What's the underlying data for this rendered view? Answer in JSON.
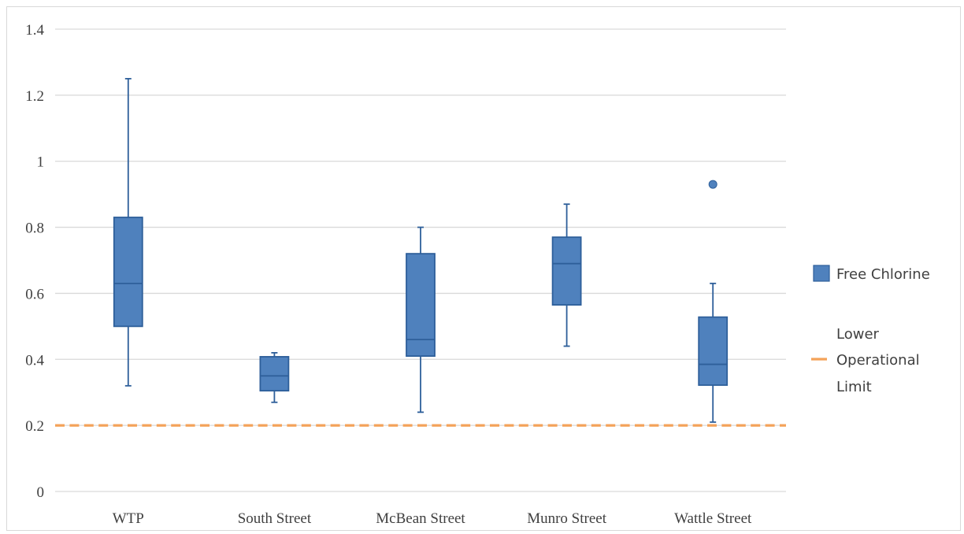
{
  "chart_data": {
    "type": "box",
    "categories": [
      "WTP",
      "South Street",
      "McBean Street",
      "Munro Street",
      "Wattle Street"
    ],
    "series": [
      {
        "name": "Free Chlorine",
        "boxes": [
          {
            "category": "WTP",
            "min": 0.32,
            "q1": 0.5,
            "median": 0.63,
            "q3": 0.83,
            "max": 1.25,
            "outliers": []
          },
          {
            "category": "South Street",
            "min": 0.27,
            "q1": 0.305,
            "median": 0.35,
            "q3": 0.408,
            "max": 0.42,
            "outliers": []
          },
          {
            "category": "McBean Street",
            "min": 0.24,
            "q1": 0.41,
            "median": 0.46,
            "q3": 0.72,
            "max": 0.8,
            "outliers": []
          },
          {
            "category": "Munro Street",
            "min": 0.44,
            "q1": 0.565,
            "median": 0.69,
            "q3": 0.77,
            "max": 0.87,
            "outliers": []
          },
          {
            "category": "Wattle Street",
            "min": 0.21,
            "q1": 0.322,
            "median": 0.385,
            "q3": 0.528,
            "max": 0.63,
            "outliers": [
              0.93
            ]
          }
        ]
      }
    ],
    "reference_lines": [
      {
        "name": "Lower Operational Limit",
        "value": 0.2,
        "style": "dashed"
      }
    ],
    "ylim": [
      0,
      1.4
    ],
    "yticks": [
      "0",
      "0.2",
      "0.4",
      "0.6",
      "0.8",
      "1",
      "1.2",
      "1.4"
    ],
    "grid": true,
    "legend": {
      "position": "right",
      "entries": [
        {
          "label_lines": [
            "Free Chlorine"
          ]
        },
        {
          "label_lines": [
            "Lower",
            "Operational",
            "Limit"
          ]
        }
      ]
    },
    "colors": {
      "box_fill": "#4f81bd",
      "box_stroke": "#2e5f9a",
      "reference_line": "#f4a259",
      "grid": "#d9d9d9",
      "text": "#404040"
    }
  }
}
